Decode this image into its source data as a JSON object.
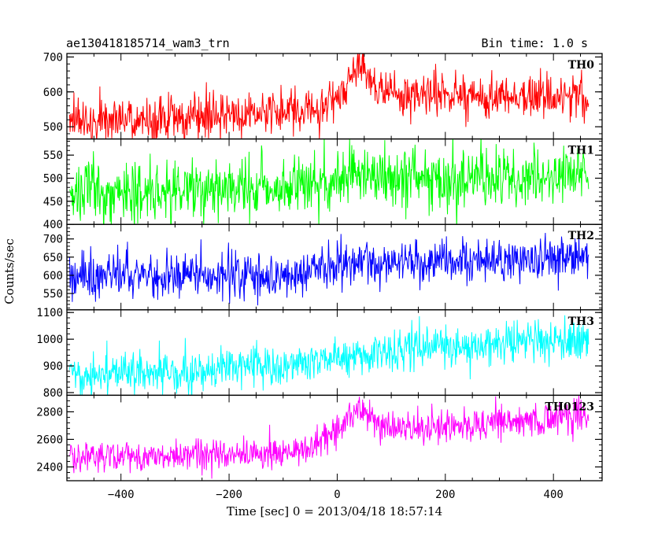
{
  "chart_data": {
    "type": "line",
    "title_left": "ae130418185714_wam3_trn",
    "title_right": "Bin time: 1.0 s",
    "xlabel": "Time [sec] 0 = 2013/04/18 18:57:14",
    "ylabel": "Counts/sec",
    "xlim": [
      -500,
      490
    ],
    "x_ticks": [
      -400,
      -200,
      0,
      200,
      400
    ],
    "x_range": [
      -495,
      465
    ],
    "bin_time": 1.0,
    "panels": [
      {
        "name": "TH0",
        "color": "#ff0000",
        "ylim": [
          465,
          710
        ],
        "y_ticks": [
          500,
          600,
          700
        ],
        "noise": 32,
        "trend": [
          [
            -495,
            515
          ],
          [
            -300,
            525
          ],
          [
            -100,
            540
          ],
          [
            -20,
            560
          ],
          [
            10,
            610
          ],
          [
            30,
            665
          ],
          [
            50,
            660
          ],
          [
            80,
            600
          ],
          [
            150,
            595
          ],
          [
            300,
            585
          ],
          [
            465,
            585
          ]
        ]
      },
      {
        "name": "TH1",
        "color": "#00ff00",
        "ylim": [
          400,
          585
        ],
        "y_ticks": [
          400,
          450,
          500,
          550
        ],
        "noise": 32,
        "trend": [
          [
            -495,
            470
          ],
          [
            -100,
            475
          ],
          [
            0,
            490
          ],
          [
            30,
            520
          ],
          [
            100,
            500
          ],
          [
            465,
            505
          ]
        ]
      },
      {
        "name": "TH2",
        "color": "#0000ff",
        "ylim": [
          505,
          740
        ],
        "y_ticks": [
          550,
          600,
          650,
          700
        ],
        "noise": 30,
        "trend": [
          [
            -495,
            595
          ],
          [
            -100,
            600
          ],
          [
            0,
            625
          ],
          [
            50,
            640
          ],
          [
            200,
            635
          ],
          [
            465,
            655
          ]
        ]
      },
      {
        "name": "TH3",
        "color": "#00ffff",
        "ylim": [
          790,
          1110
        ],
        "y_ticks": [
          800,
          900,
          1000,
          1100
        ],
        "noise": 38,
        "trend": [
          [
            -495,
            870
          ],
          [
            -300,
            880
          ],
          [
            -100,
            905
          ],
          [
            0,
            935
          ],
          [
            100,
            955
          ],
          [
            200,
            970
          ],
          [
            300,
            985
          ],
          [
            465,
            1005
          ]
        ]
      },
      {
        "name": "TH0123",
        "color": "#ff00ff",
        "ylim": [
          2300,
          2920
        ],
        "y_ticks": [
          2400,
          2600,
          2800
        ],
        "noise": 58,
        "trend": [
          [
            -495,
            2460
          ],
          [
            -300,
            2480
          ],
          [
            -100,
            2505
          ],
          [
            -40,
            2550
          ],
          [
            0,
            2660
          ],
          [
            30,
            2790
          ],
          [
            60,
            2760
          ],
          [
            100,
            2690
          ],
          [
            200,
            2695
          ],
          [
            465,
            2760
          ]
        ]
      }
    ]
  }
}
